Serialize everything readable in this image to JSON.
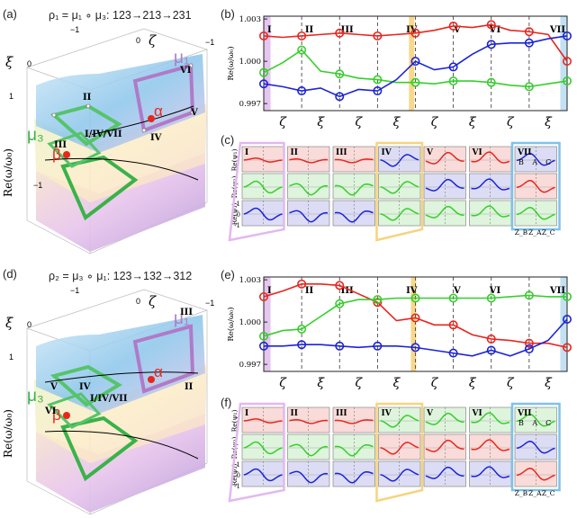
{
  "panels": {
    "a": {
      "label": "(a)",
      "equation": "ρ₁ = μ₁ ∘ μ₃: 123→213→231",
      "xi": "ξ",
      "zeta": "ζ",
      "zlabel": "Re(ω/ω₀)",
      "ticks_top": [
        "−1",
        "0",
        "1",
        "−1"
      ],
      "ticks_left": [
        "0",
        "1",
        "−1"
      ],
      "mu1": "μ₁",
      "mu3": "μ₃",
      "alpha": "α",
      "beta": "β",
      "pts": [
        "II",
        "III",
        "I/IV/VII",
        "IV",
        "V",
        "VI"
      ]
    },
    "d": {
      "label": "(d)",
      "equation": "ρ₂ = μ₃ ∘ μ₁: 123→132→312",
      "xi": "ξ",
      "zeta": "ζ",
      "zlabel": "Re(ω/ω₀)",
      "ticks_top": [
        "−1",
        "0",
        "1",
        "−1"
      ],
      "ticks_left": [
        "0",
        "1"
      ],
      "mu1": "μ₁",
      "mu3": "μ₃",
      "alpha": "α",
      "beta": "β",
      "pts": [
        "III",
        "V",
        "IV",
        "VI",
        "I/IV/VII",
        "II"
      ]
    }
  },
  "chart_labels": {
    "b": "(b)",
    "e": "(e)",
    "c": "(c)",
    "f": "(f)",
    "ylabel": "Re(ω/ω₀)",
    "yticks": [
      "1.003",
      "1.000",
      "0.997"
    ],
    "sections": [
      "I",
      "II",
      "III",
      "IV",
      "V",
      "VI",
      "VII"
    ],
    "xlabels": [
      "ζ",
      "ξ",
      "ζ",
      "ξ",
      "ζ",
      "ξ",
      "ζ",
      "ξ"
    ],
    "mode_rows": [
      "Re(ψ₁)",
      "Re(ψ₂)",
      "Re(ψ₃)"
    ],
    "vii_marks": [
      "B",
      "A",
      "C"
    ],
    "vii_z": [
      "Z_B",
      "Z_A",
      "Z_C"
    ],
    "tick1": "1",
    "tick0": "0",
    "tickm1": "-1"
  },
  "chart_data": [
    {
      "type": "line",
      "title": "(b)",
      "ylabel": "Re(ω/ω₀)",
      "ylim": [
        0.9965,
        1.0032
      ],
      "x": [
        0,
        0.5,
        1,
        1.5,
        2,
        2.5,
        3,
        3.5,
        4,
        4.5,
        5,
        5.5,
        6,
        6.5,
        7,
        7.5,
        8
      ],
      "series": [
        {
          "name": "red",
          "color": "#e8261e",
          "values": [
            1.0018,
            1.0017,
            1.0018,
            1.0019,
            1.002,
            1.0019,
            1.0018,
            1.0019,
            1.002,
            1.0022,
            1.0025,
            1.0024,
            1.0026,
            1.0022,
            1.0021,
            1.0019,
            1.0
          ]
        },
        {
          "name": "green",
          "color": "#35cf2a",
          "values": [
            0.9992,
            0.9999,
            1.0008,
            0.9993,
            0.9991,
            0.9988,
            0.9987,
            0.9985,
            0.9985,
            0.9984,
            0.9986,
            0.9986,
            0.9985,
            0.9983,
            0.9982,
            0.9984,
            0.9986
          ]
        },
        {
          "name": "blue",
          "color": "#1c24d6",
          "values": [
            0.9984,
            0.9982,
            0.9979,
            0.9981,
            0.9975,
            0.998,
            0.9979,
            0.9987,
            1.0,
            0.9994,
            0.9996,
            1.0005,
            1.0012,
            1.0013,
            1.0013,
            1.0016,
            1.0018
          ]
        }
      ]
    },
    {
      "type": "line",
      "title": "(e)",
      "ylabel": "Re(ω/ω₀)",
      "ylim": [
        0.9965,
        1.0032
      ],
      "x": [
        0,
        0.5,
        1,
        1.5,
        2,
        2.5,
        3,
        3.5,
        4,
        4.5,
        5,
        5.5,
        6,
        6.5,
        7,
        7.5,
        8
      ],
      "series": [
        {
          "name": "red",
          "color": "#e8261e",
          "values": [
            1.0018,
            1.0022,
            1.0027,
            1.0027,
            1.0026,
            1.002,
            1.0014,
            1.0001,
            1.0003,
            0.9998,
            0.9998,
            0.9991,
            0.9988,
            0.9987,
            0.9985,
            0.9985,
            0.9982
          ]
        },
        {
          "name": "green",
          "color": "#35cf2a",
          "values": [
            0.999,
            0.9994,
            0.9995,
            1.0004,
            1.0013,
            1.0016,
            1.0016,
            1.0017,
            1.0017,
            1.0017,
            1.0017,
            1.0017,
            1.0017,
            1.0018,
            1.0019,
            1.0018,
            1.0018
          ]
        },
        {
          "name": "blue",
          "color": "#1c24d6",
          "values": [
            0.9983,
            0.9983,
            0.9984,
            0.9984,
            0.9983,
            0.9982,
            0.9983,
            0.9983,
            0.9982,
            0.998,
            0.9978,
            0.9976,
            0.998,
            0.9976,
            0.9981,
            0.9987,
            1.0002
          ]
        }
      ]
    }
  ]
}
